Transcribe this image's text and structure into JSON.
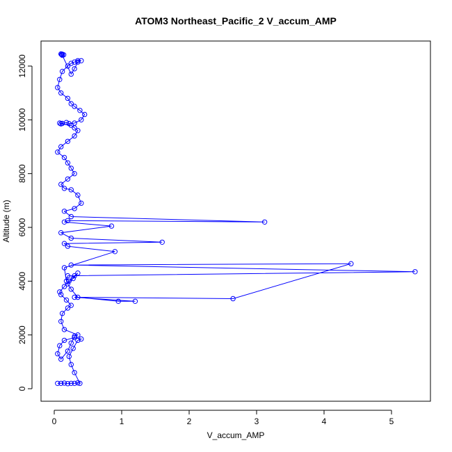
{
  "chart_data": {
    "type": "line",
    "title": "ATOM3 Northeast_Pacific_2 V_accum_AMP",
    "xlabel": "V_accum_AMP",
    "ylabel": "Altitude (m)",
    "xlim": [
      0,
      5.5
    ],
    "ylim": [
      0,
      12600
    ],
    "x_ticks": [
      0,
      1,
      2,
      3,
      4,
      5
    ],
    "y_ticks": [
      0,
      2000,
      4000,
      6000,
      8000,
      10000,
      12000
    ],
    "grid": false,
    "legend": "none",
    "series_color": "#0000ff",
    "marker": "open-circle",
    "series": [
      {
        "x": [
          0.05,
          0.1,
          0.15,
          0.2,
          0.25,
          0.3,
          0.35,
          0.38,
          0.3,
          0.25,
          0.22,
          0.28,
          0.35,
          0.4,
          0.3,
          0.15,
          0.08,
          0.05,
          0.1,
          0.2,
          0.25,
          0.3,
          0.35,
          0.15,
          0.1,
          0.12,
          0.2,
          0.25,
          0.18,
          0.1,
          0.08,
          0.15,
          0.22,
          0.3,
          0.35,
          0.28,
          0.2,
          0.25,
          0.35,
          0.95,
          1.2,
          0.3,
          2.65,
          4.4,
          0.25,
          5.35,
          0.2,
          0.18,
          0.15,
          0.9,
          0.2,
          0.15,
          1.6,
          0.25,
          0.1,
          0.85,
          0.15,
          0.2,
          3.12,
          0.25,
          0.15,
          0.3,
          0.4,
          0.35,
          0.25,
          0.15,
          0.1,
          0.2,
          0.3,
          0.25,
          0.2,
          0.15,
          0.05,
          0.1,
          0.2,
          0.3,
          0.35,
          0.3,
          0.25,
          0.1,
          0.08,
          0.12,
          0.18,
          0.22,
          0.3,
          0.4,
          0.45,
          0.38,
          0.3,
          0.25,
          0.2,
          0.1,
          0.05,
          0.08,
          0.12,
          0.2,
          0.25,
          0.3,
          0.35,
          0.4,
          0.35,
          0.3,
          0.25,
          0.12,
          0.1,
          0.11,
          0.12,
          0.14
        ],
        "y": [
          200,
          200,
          210,
          190,
          200,
          200,
          220,
          200,
          600,
          900,
          1200,
          1500,
          1800,
          1850,
          1900,
          1800,
          1600,
          1300,
          1100,
          1400,
          1700,
          1950,
          2000,
          2200,
          2500,
          2800,
          3000,
          3100,
          3300,
          3500,
          3600,
          3800,
          4000,
          4200,
          4300,
          4100,
          3900,
          3700,
          3400,
          3250,
          3250,
          3400,
          3350,
          4650,
          4600,
          4350,
          4200,
          4000,
          4500,
          5100,
          5300,
          5400,
          5450,
          5600,
          5800,
          6050,
          6200,
          6250,
          6200,
          6400,
          6600,
          6700,
          6900,
          7200,
          7400,
          7450,
          7600,
          7800,
          8000,
          8200,
          8400,
          8600,
          8800,
          9000,
          9200,
          9400,
          9600,
          9700,
          9800,
          9850,
          9880,
          9870,
          9900,
          9860,
          9880,
          10000,
          10200,
          10350,
          10500,
          10600,
          10800,
          11000,
          11200,
          11500,
          11800,
          12000,
          12100,
          12150,
          12200,
          12200,
          12150,
          11900,
          11700,
          12400,
          12450,
          12430,
          12440,
          12420
        ]
      }
    ]
  }
}
